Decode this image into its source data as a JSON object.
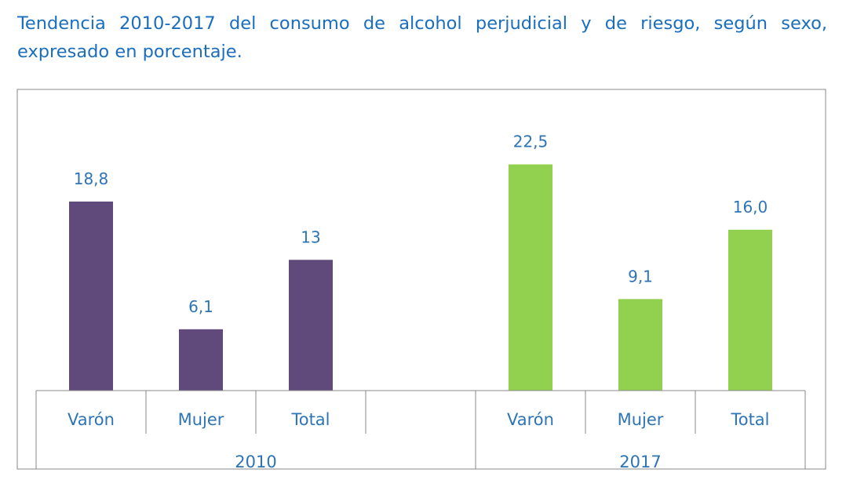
{
  "chart_data": {
    "type": "bar",
    "title": "Tendencia 2010-2017 del consumo de alcohol perjudicial y de riesgo, según sexo, expresado en porcentaje.",
    "xlabel": "",
    "ylabel": "",
    "groups": [
      {
        "name": "2010",
        "color": "#604a7b",
        "categories": [
          "Varón",
          "Mujer",
          "Total"
        ],
        "values": [
          18.8,
          6.1,
          13
        ],
        "labels": [
          "18,8",
          "6,1",
          "13"
        ]
      },
      {
        "name": "2017",
        "color": "#92d050",
        "categories": [
          "Varón",
          "Mujer",
          "Total"
        ],
        "values": [
          22.5,
          9.1,
          16.0
        ],
        "labels": [
          "22,5",
          "9,1",
          "16,0"
        ]
      }
    ],
    "ylim": [
      0,
      25
    ],
    "grid": false,
    "legend": "none"
  }
}
